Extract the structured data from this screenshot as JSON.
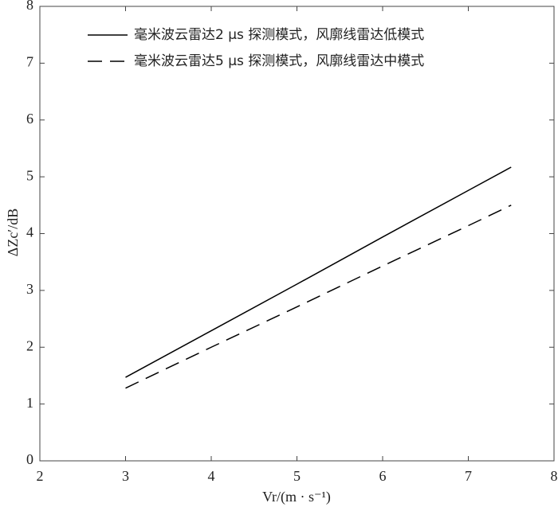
{
  "chart_data": {
    "type": "line",
    "x_label": "Vr/(m · s⁻¹)",
    "y_label": "ΔZc′/dB",
    "x": [
      3,
      4,
      5,
      6,
      7,
      7.5
    ],
    "series": [
      {
        "name": "毫米波云雷达2 μs 探测模式，风廓线雷达低模式",
        "color": "#000000",
        "line_style": "solid",
        "values": [
          1.47,
          2.29,
          3.11,
          3.94,
          4.76,
          5.17
        ]
      },
      {
        "name": "毫米波云雷达5 μs 探测模式，风廓线雷达中模式",
        "color": "#000000",
        "line_style": "dashed",
        "values": [
          1.28,
          2.0,
          2.71,
          3.43,
          4.14,
          4.5
        ]
      }
    ],
    "xlim": [
      2,
      8
    ],
    "xticks": [
      2,
      3,
      4,
      5,
      6,
      7,
      8
    ],
    "ylim": [
      0,
      8
    ],
    "yticks": [
      0,
      1,
      2,
      3,
      4,
      5,
      6,
      7,
      8
    ],
    "legend": "upper left",
    "grid": false
  }
}
